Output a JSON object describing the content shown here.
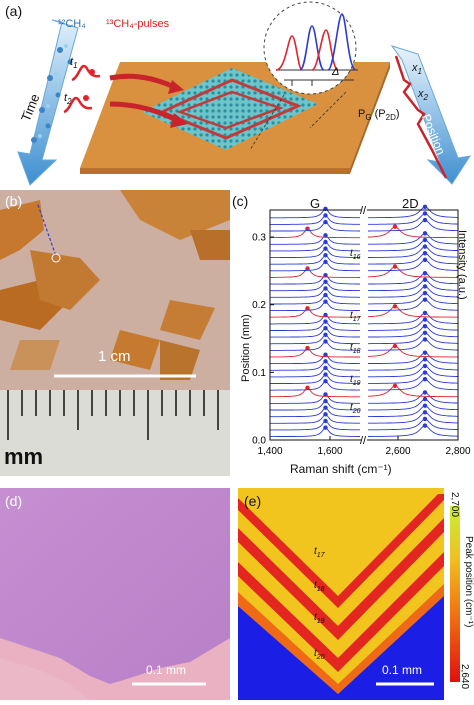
{
  "panel_a": {
    "label": "(a)",
    "source_12": "¹²CH₄",
    "source_13": "¹³CH₄-pulses",
    "t1": "t",
    "t1_sub": "1",
    "t2": "t",
    "t2_sub": "2",
    "time_label": "Time",
    "position_label": "Position",
    "x1": "x",
    "x1_sub": "1",
    "x2": "x",
    "x2_sub": "2",
    "delta": "Δ",
    "pg": "P",
    "pg_sub": "G",
    "p2d": "(P",
    "p2d_sub": "2D",
    "p2d_close": ")"
  },
  "panel_b": {
    "label": "(b)",
    "scale_label": "1 cm",
    "ruler_unit": "mm"
  },
  "panel_c": {
    "label": "(c)",
    "peak_g": "G",
    "peak_2d": "2D",
    "time_labels": [
      {
        "t": "t",
        "sub": "16"
      },
      {
        "t": "t",
        "sub": "17"
      },
      {
        "t": "t",
        "sub": "18"
      },
      {
        "t": "t",
        "sub": "19"
      },
      {
        "t": "t",
        "sub": "20"
      }
    ]
  },
  "panel_d": {
    "label": "(d)",
    "scale_label": "0.1 mm"
  },
  "panel_e": {
    "label": "(e)",
    "scale_label": "0.1 mm",
    "colorbar_top": "2,700",
    "colorbar_bottom": "2,640",
    "colorbar_label": "Peak position (cm⁻¹)",
    "time_labels": [
      {
        "t": "t",
        "sub": "17"
      },
      {
        "t": "t",
        "sub": "18"
      },
      {
        "t": "t",
        "sub": "19"
      },
      {
        "t": "t",
        "sub": "20"
      }
    ]
  },
  "chart_data": {
    "type": "line",
    "title": "",
    "xlabel": "Raman shift (cm⁻¹)",
    "ylabel": "Position (mm)",
    "ylabel_right": "Intensity (a.u.)",
    "x_ticks": [
      "1,400",
      "1,600",
      "2,600",
      "2,800"
    ],
    "y_ticks": [
      "0.0",
      "0.1",
      "0.2",
      "0.3"
    ],
    "ylim": [
      0,
      0.34
    ],
    "axis_break": true,
    "series": [
      {
        "color": "#2b3bd6",
        "type": "12C spectra"
      },
      {
        "color": "#e0242b",
        "type": "13C pulse spectra"
      }
    ],
    "spectra_count": 34,
    "red_indices": [
      3,
      9,
      15,
      21,
      27
    ],
    "g_peak_12C": 1585,
    "g_peak_13C": 1525,
    "2d_peak_12C": 2690,
    "2d_peak_13C": 2590
  },
  "colors": {
    "substrate": "#d9903f",
    "blue": "#2b3bd6",
    "red": "#e0242b",
    "sky": "#5aa6e0"
  }
}
